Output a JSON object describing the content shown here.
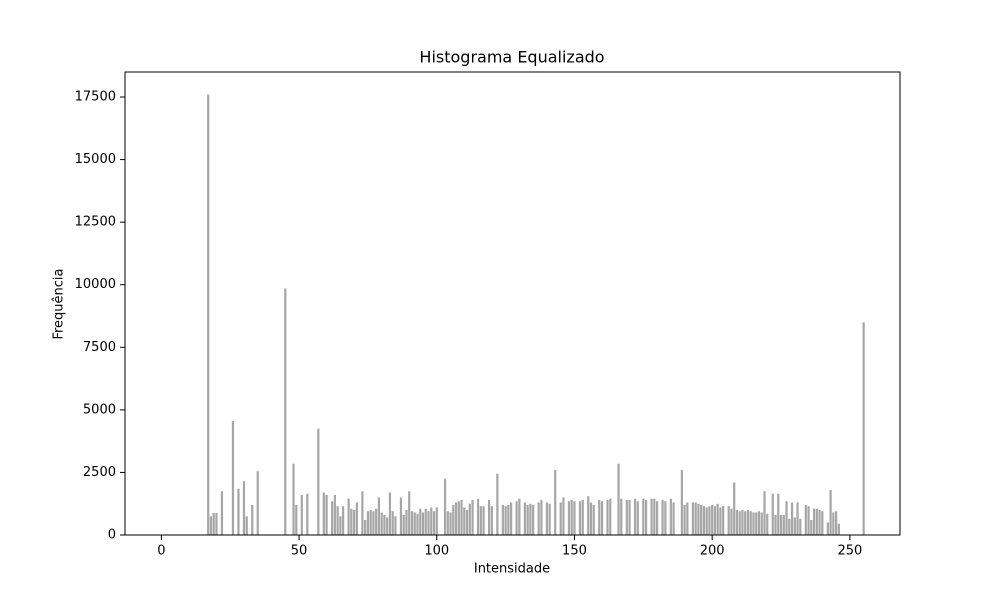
{
  "chart_data": {
    "type": "bar",
    "title": "Histograma Equalizado",
    "x_label": "Intensidade",
    "y_label": "Frequência",
    "x": [
      0,
      1,
      2,
      3,
      4,
      5,
      6,
      7,
      8,
      9,
      10,
      11,
      12,
      13,
      14,
      15,
      16,
      17,
      18,
      19,
      20,
      21,
      22,
      23,
      24,
      25,
      26,
      27,
      28,
      29,
      30,
      31,
      32,
      33,
      34,
      35,
      36,
      37,
      38,
      39,
      40,
      41,
      42,
      43,
      44,
      45,
      46,
      47,
      48,
      49,
      50,
      51,
      52,
      53,
      54,
      55,
      56,
      57,
      58,
      59,
      60,
      61,
      62,
      63,
      64,
      65,
      66,
      67,
      68,
      69,
      70,
      71,
      72,
      73,
      74,
      75,
      76,
      77,
      78,
      79,
      80,
      81,
      82,
      83,
      84,
      85,
      86,
      87,
      88,
      89,
      90,
      91,
      92,
      93,
      94,
      95,
      96,
      97,
      98,
      99,
      100,
      101,
      102,
      103,
      104,
      105,
      106,
      107,
      108,
      109,
      110,
      111,
      112,
      113,
      114,
      115,
      116,
      117,
      118,
      119,
      120,
      121,
      122,
      123,
      124,
      125,
      126,
      127,
      128,
      129,
      130,
      131,
      132,
      133,
      134,
      135,
      136,
      137,
      138,
      139,
      140,
      141,
      142,
      143,
      144,
      145,
      146,
      147,
      148,
      149,
      150,
      151,
      152,
      153,
      154,
      155,
      156,
      157,
      158,
      159,
      160,
      161,
      162,
      163,
      164,
      165,
      166,
      167,
      168,
      169,
      170,
      171,
      172,
      173,
      174,
      175,
      176,
      177,
      178,
      179,
      180,
      181,
      182,
      183,
      184,
      185,
      186,
      187,
      188,
      189,
      190,
      191,
      192,
      193,
      194,
      195,
      196,
      197,
      198,
      199,
      200,
      201,
      202,
      203,
      204,
      205,
      206,
      207,
      208,
      209,
      210,
      211,
      212,
      213,
      214,
      215,
      216,
      217,
      218,
      219,
      220,
      221,
      222,
      223,
      224,
      225,
      226,
      227,
      228,
      229,
      230,
      231,
      232,
      233,
      234,
      235,
      236,
      237,
      238,
      239,
      240,
      241,
      242,
      243,
      244,
      245,
      246,
      247,
      248,
      249,
      250,
      251,
      252,
      253,
      254,
      255
    ],
    "values": [
      0,
      0,
      0,
      0,
      0,
      0,
      0,
      0,
      0,
      0,
      0,
      0,
      0,
      0,
      0,
      0,
      0,
      17600,
      750,
      880,
      880,
      0,
      1750,
      0,
      0,
      0,
      4550,
      0,
      1850,
      0,
      2150,
      750,
      0,
      1200,
      0,
      2550,
      0,
      0,
      0,
      0,
      0,
      0,
      0,
      0,
      0,
      9850,
      0,
      0,
      2850,
      1200,
      0,
      1600,
      0,
      1650,
      0,
      0,
      0,
      4250,
      0,
      1700,
      1600,
      0,
      1350,
      1600,
      1150,
      750,
      1150,
      0,
      1450,
      1050,
      1000,
      1300,
      0,
      1750,
      600,
      950,
      1000,
      950,
      1050,
      1500,
      900,
      800,
      700,
      1700,
      950,
      750,
      0,
      1500,
      800,
      1000,
      1750,
      950,
      900,
      850,
      1050,
      900,
      1050,
      950,
      1100,
      950,
      1100,
      0,
      0,
      2250,
      950,
      900,
      1200,
      1300,
      1350,
      1400,
      1100,
      1000,
      1250,
      1400,
      0,
      1450,
      1150,
      1150,
      0,
      1400,
      1150,
      0,
      2450,
      0,
      1200,
      1150,
      1200,
      1300,
      0,
      1350,
      1450,
      0,
      1300,
      1200,
      1250,
      1200,
      0,
      1300,
      1400,
      0,
      1300,
      1250,
      0,
      2600,
      0,
      1300,
      1500,
      0,
      1350,
      1400,
      1350,
      0,
      1350,
      1400,
      0,
      1550,
      1300,
      1200,
      0,
      1400,
      1350,
      0,
      1400,
      1450,
      0,
      0,
      2850,
      1450,
      0,
      1400,
      1400,
      0,
      1450,
      1350,
      0,
      1450,
      1400,
      0,
      1450,
      1450,
      1350,
      0,
      1400,
      1350,
      0,
      1450,
      1300,
      0,
      0,
      2600,
      1200,
      1300,
      0,
      1300,
      1300,
      1250,
      1200,
      1150,
      1100,
      1150,
      1200,
      1150,
      1250,
      1100,
      1150,
      0,
      1150,
      1050,
      2100,
      1000,
      950,
      1000,
      950,
      1000,
      950,
      900,
      900,
      950,
      900,
      1750,
      850,
      0,
      1650,
      800,
      1650,
      800,
      800,
      1350,
      650,
      1300,
      700,
      1300,
      650,
      0,
      1200,
      1150,
      600,
      1050,
      1050,
      1000,
      950,
      0,
      500,
      1800,
      900,
      950,
      450,
      0,
      0,
      0,
      0,
      0,
      0,
      0,
      0,
      8500
    ],
    "color": "#a6a6a6",
    "xlim": [
      -13.2,
      268.2
    ],
    "xticks": [
      0,
      50,
      100,
      150,
      200,
      250
    ],
    "ylim": [
      0,
      18500
    ],
    "yticks": [
      0,
      2500,
      5000,
      7500,
      10000,
      12500,
      15000,
      17500
    ],
    "grid": false
  }
}
